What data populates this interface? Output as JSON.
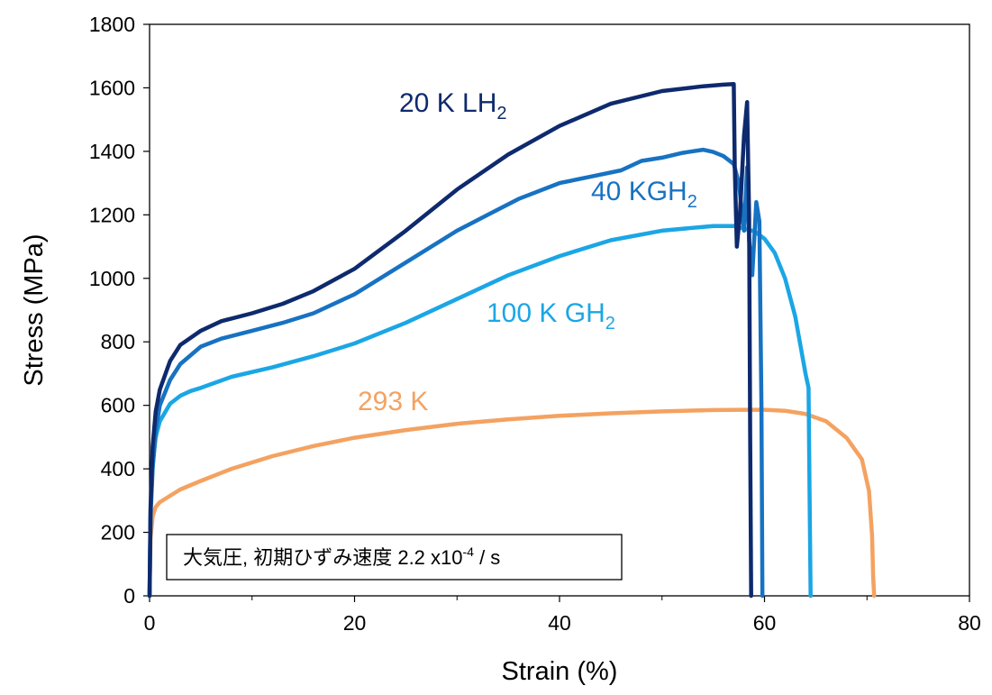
{
  "chart_data": {
    "type": "line",
    "xlabel": "Strain (%)",
    "ylabel": "Stress (MPa)",
    "xlim": [
      0,
      80
    ],
    "ylim": [
      0,
      1800
    ],
    "xticks": [
      0,
      20,
      40,
      60,
      80
    ],
    "yticks": [
      0,
      200,
      400,
      600,
      800,
      1000,
      1200,
      1400,
      1600,
      1800
    ],
    "grid": false,
    "annotation": {
      "text_main": "大気圧, 初期ひずみ速度 2.2 x10",
      "text_sup": "-4",
      "text_tail": " / s"
    },
    "series": [
      {
        "name": "293 K",
        "label_main": "293 K",
        "label_sub": "",
        "color": "#F4A261",
        "x": [
          0,
          0.1,
          0.3,
          0.6,
          1,
          2,
          3,
          5,
          8,
          12,
          16,
          20,
          25,
          30,
          35,
          40,
          45,
          50,
          55,
          58,
          60,
          62,
          64,
          66,
          68,
          69.5,
          70.2,
          70.5,
          70.6,
          70.7
        ],
        "y": [
          0,
          180,
          250,
          280,
          295,
          315,
          335,
          362,
          400,
          440,
          472,
          498,
          522,
          542,
          556,
          567,
          575,
          581,
          585,
          586,
          586,
          583,
          573,
          550,
          498,
          430,
          330,
          190,
          60,
          0
        ]
      },
      {
        "name": "100 K GH2",
        "label_main": "100 K GH",
        "label_sub": "2",
        "color": "#1BA6E5",
        "x": [
          0,
          0.1,
          0.3,
          0.6,
          1,
          2,
          3,
          4,
          5,
          8,
          12,
          16,
          20,
          25,
          30,
          35,
          40,
          45,
          50,
          55,
          57,
          59,
          60,
          61,
          62,
          63,
          64,
          64.3,
          64.4,
          64.5
        ],
        "y": [
          0,
          270,
          410,
          500,
          550,
          605,
          630,
          645,
          655,
          690,
          720,
          755,
          795,
          860,
          935,
          1010,
          1070,
          1120,
          1150,
          1165,
          1165,
          1148,
          1125,
          1080,
          1000,
          880,
          700,
          655,
          300,
          0
        ]
      },
      {
        "name": "40 KGH2",
        "label_main": "40 KGH",
        "label_sub": "2",
        "color": "#1772C2",
        "x": [
          0,
          0.1,
          0.3,
          0.6,
          1,
          2,
          3,
          5,
          7,
          10,
          13,
          16,
          20,
          25,
          30,
          33,
          36,
          40,
          43,
          46,
          48,
          50,
          52,
          54,
          55,
          56,
          57,
          57.5,
          58,
          58.3,
          58.5,
          58.8,
          59.2,
          59.5,
          59.7,
          59.8
        ],
        "y": [
          0,
          250,
          400,
          520,
          600,
          680,
          730,
          785,
          810,
          835,
          860,
          890,
          950,
          1050,
          1150,
          1200,
          1250,
          1300,
          1320,
          1340,
          1370,
          1380,
          1395,
          1405,
          1398,
          1385,
          1360,
          1300,
          1150,
          1350,
          1120,
          1010,
          1240,
          1180,
          600,
          0
        ]
      },
      {
        "name": "20 K LH2",
        "label_main": "20 K LH",
        "label_sub": "2",
        "color": "#0E2A6E",
        "x": [
          0,
          0.1,
          0.3,
          0.6,
          1,
          2,
          3,
          5,
          7,
          10,
          13,
          16,
          20,
          25,
          30,
          35,
          40,
          45,
          50,
          54,
          56,
          57,
          57.1,
          57.3,
          57.6,
          58,
          58.3,
          58.5,
          58.6,
          58.7
        ],
        "y": [
          0,
          280,
          470,
          580,
          650,
          740,
          790,
          835,
          865,
          890,
          920,
          960,
          1030,
          1150,
          1280,
          1390,
          1480,
          1550,
          1590,
          1605,
          1610,
          1612,
          1350,
          1100,
          1200,
          1450,
          1555,
          1200,
          500,
          0
        ]
      }
    ]
  }
}
